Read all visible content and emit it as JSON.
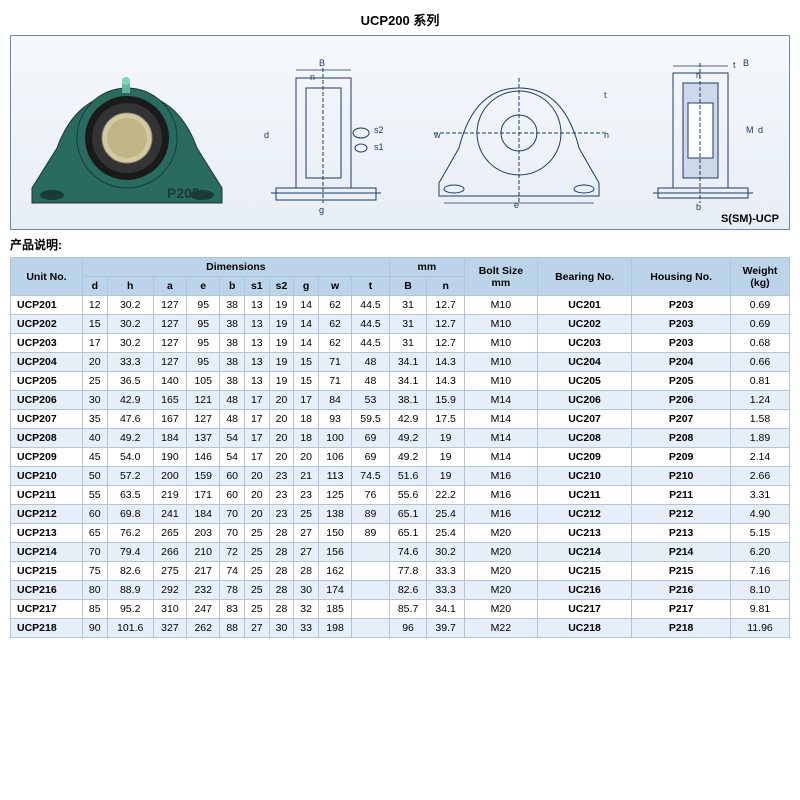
{
  "title": "UCP200 系列",
  "section_label": "产品说明:",
  "product_label": "S(SM)-UCP",
  "table": {
    "header_row1": {
      "unit": "Unit No.",
      "dimensions": "Dimensions",
      "dim_unit": "mm",
      "bolt": "Bolt Size",
      "bolt_unit": "mm",
      "bearing": "Bearing No.",
      "housing": "Housing No.",
      "weight": "Weight",
      "weight_unit": "(kg)"
    },
    "header_row2": [
      "d",
      "h",
      "a",
      "e",
      "b",
      "s1",
      "s2",
      "g",
      "w",
      "t",
      "B",
      "n"
    ],
    "rows": [
      {
        "unit": "UCP201",
        "d": "12",
        "h": "30.2",
        "a": "127",
        "e": "95",
        "b": "38",
        "s1": "13",
        "s2": "19",
        "g": "14",
        "w": "62",
        "t": "44.5",
        "B": "31",
        "n": "12.7",
        "bolt": "M10",
        "bearing": "UC201",
        "housing": "P203",
        "weight": "0.69"
      },
      {
        "unit": "UCP202",
        "d": "15",
        "h": "30.2",
        "a": "127",
        "e": "95",
        "b": "38",
        "s1": "13",
        "s2": "19",
        "g": "14",
        "w": "62",
        "t": "44.5",
        "B": "31",
        "n": "12.7",
        "bolt": "M10",
        "bearing": "UC202",
        "housing": "P203",
        "weight": "0.69"
      },
      {
        "unit": "UCP203",
        "d": "17",
        "h": "30.2",
        "a": "127",
        "e": "95",
        "b": "38",
        "s1": "13",
        "s2": "19",
        "g": "14",
        "w": "62",
        "t": "44.5",
        "B": "31",
        "n": "12.7",
        "bolt": "M10",
        "bearing": "UC203",
        "housing": "P203",
        "weight": "0.68"
      },
      {
        "unit": "UCP204",
        "d": "20",
        "h": "33.3",
        "a": "127",
        "e": "95",
        "b": "38",
        "s1": "13",
        "s2": "19",
        "g": "15",
        "w": "71",
        "t": "48",
        "B": "34.1",
        "n": "14.3",
        "bolt": "M10",
        "bearing": "UC204",
        "housing": "P204",
        "weight": "0.66"
      },
      {
        "unit": "UCP205",
        "d": "25",
        "h": "36.5",
        "a": "140",
        "e": "105",
        "b": "38",
        "s1": "13",
        "s2": "19",
        "g": "15",
        "w": "71",
        "t": "48",
        "B": "34.1",
        "n": "14.3",
        "bolt": "M10",
        "bearing": "UC205",
        "housing": "P205",
        "weight": "0.81"
      },
      {
        "unit": "UCP206",
        "d": "30",
        "h": "42.9",
        "a": "165",
        "e": "121",
        "b": "48",
        "s1": "17",
        "s2": "20",
        "g": "17",
        "w": "84",
        "t": "53",
        "B": "38.1",
        "n": "15.9",
        "bolt": "M14",
        "bearing": "UC206",
        "housing": "P206",
        "weight": "1.24"
      },
      {
        "unit": "UCP207",
        "d": "35",
        "h": "47.6",
        "a": "167",
        "e": "127",
        "b": "48",
        "s1": "17",
        "s2": "20",
        "g": "18",
        "w": "93",
        "t": "59.5",
        "B": "42.9",
        "n": "17.5",
        "bolt": "M14",
        "bearing": "UC207",
        "housing": "P207",
        "weight": "1.58"
      },
      {
        "unit": "UCP208",
        "d": "40",
        "h": "49.2",
        "a": "184",
        "e": "137",
        "b": "54",
        "s1": "17",
        "s2": "20",
        "g": "18",
        "w": "100",
        "t": "69",
        "B": "49.2",
        "n": "19",
        "bolt": "M14",
        "bearing": "UC208",
        "housing": "P208",
        "weight": "1.89"
      },
      {
        "unit": "UCP209",
        "d": "45",
        "h": "54.0",
        "a": "190",
        "e": "146",
        "b": "54",
        "s1": "17",
        "s2": "20",
        "g": "20",
        "w": "106",
        "t": "69",
        "B": "49.2",
        "n": "19",
        "bolt": "M14",
        "bearing": "UC209",
        "housing": "P209",
        "weight": "2.14"
      },
      {
        "unit": "UCP210",
        "d": "50",
        "h": "57.2",
        "a": "200",
        "e": "159",
        "b": "60",
        "s1": "20",
        "s2": "23",
        "g": "21",
        "w": "113",
        "t": "74.5",
        "B": "51.6",
        "n": "19",
        "bolt": "M16",
        "bearing": "UC210",
        "housing": "P210",
        "weight": "2.66"
      },
      {
        "unit": "UCP211",
        "d": "55",
        "h": "63.5",
        "a": "219",
        "e": "171",
        "b": "60",
        "s1": "20",
        "s2": "23",
        "g": "23",
        "w": "125",
        "t": "76",
        "B": "55.6",
        "n": "22.2",
        "bolt": "M16",
        "bearing": "UC211",
        "housing": "P211",
        "weight": "3.31"
      },
      {
        "unit": "UCP212",
        "d": "60",
        "h": "69.8",
        "a": "241",
        "e": "184",
        "b": "70",
        "s1": "20",
        "s2": "23",
        "g": "25",
        "w": "138",
        "t": "89",
        "B": "65.1",
        "n": "25.4",
        "bolt": "M16",
        "bearing": "UC212",
        "housing": "P212",
        "weight": "4.90"
      },
      {
        "unit": "UCP213",
        "d": "65",
        "h": "76.2",
        "a": "265",
        "e": "203",
        "b": "70",
        "s1": "25",
        "s2": "28",
        "g": "27",
        "w": "150",
        "t": "89",
        "B": "65.1",
        "n": "25.4",
        "bolt": "M20",
        "bearing": "UC213",
        "housing": "P213",
        "weight": "5.15"
      },
      {
        "unit": "UCP214",
        "d": "70",
        "h": "79.4",
        "a": "266",
        "e": "210",
        "b": "72",
        "s1": "25",
        "s2": "28",
        "g": "27",
        "w": "156",
        "t": "",
        "B": "74.6",
        "n": "30.2",
        "bolt": "M20",
        "bearing": "UC214",
        "housing": "P214",
        "weight": "6.20"
      },
      {
        "unit": "UCP215",
        "d": "75",
        "h": "82.6",
        "a": "275",
        "e": "217",
        "b": "74",
        "s1": "25",
        "s2": "28",
        "g": "28",
        "w": "162",
        "t": "",
        "B": "77.8",
        "n": "33.3",
        "bolt": "M20",
        "bearing": "UC215",
        "housing": "P215",
        "weight": "7.16"
      },
      {
        "unit": "UCP216",
        "d": "80",
        "h": "88.9",
        "a": "292",
        "e": "232",
        "b": "78",
        "s1": "25",
        "s2": "28",
        "g": "30",
        "w": "174",
        "t": "",
        "B": "82.6",
        "n": "33.3",
        "bolt": "M20",
        "bearing": "UC216",
        "housing": "P216",
        "weight": "8.10"
      },
      {
        "unit": "UCP217",
        "d": "85",
        "h": "95.2",
        "a": "310",
        "e": "247",
        "b": "83",
        "s1": "25",
        "s2": "28",
        "g": "32",
        "w": "185",
        "t": "",
        "B": "85.7",
        "n": "34.1",
        "bolt": "M20",
        "bearing": "UC217",
        "housing": "P217",
        "weight": "9.81"
      },
      {
        "unit": "UCP218",
        "d": "90",
        "h": "101.6",
        "a": "327",
        "e": "262",
        "b": "88",
        "s1": "27",
        "s2": "30",
        "g": "33",
        "w": "198",
        "t": "",
        "B": "96",
        "n": "39.7",
        "bolt": "M22",
        "bearing": "UC218",
        "housing": "P218",
        "weight": "11.96"
      }
    ]
  },
  "diagram_labels": {
    "left_text": "P205",
    "dims": [
      "B",
      "n",
      "g",
      "s1",
      "s2",
      "d",
      "h",
      "t",
      "w",
      "e",
      "a",
      "M"
    ]
  },
  "colors": {
    "border": "#6b8ab0",
    "header_bg": "#bcd4ea",
    "row_even": "#e6eef7",
    "row_odd": "#ffffff",
    "cell_border": "#b0c4de",
    "bearing_green": "#2a6b5f",
    "bearing_dark": "#1a1a1a"
  }
}
